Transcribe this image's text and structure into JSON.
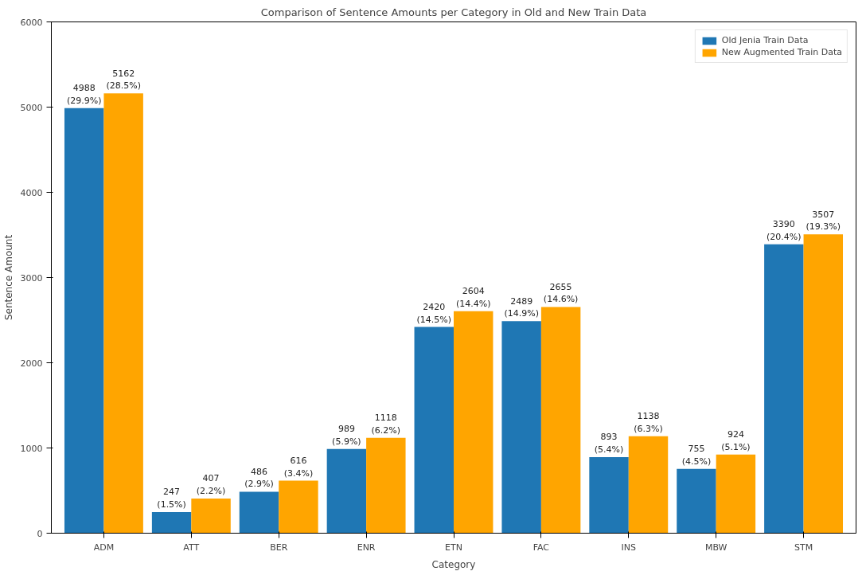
{
  "chart_data": {
    "type": "bar",
    "title": "Comparison of Sentence Amounts per Category in Old and New Train Data",
    "xlabel": "Category",
    "ylabel": "Sentence Amount",
    "categories": [
      "ADM",
      "ATT",
      "BER",
      "ENR",
      "ETN",
      "FAC",
      "INS",
      "MBW",
      "STM"
    ],
    "series": [
      {
        "name": "Old Jenia Train Data",
        "color": "#1f77b4",
        "values": [
          4988,
          247,
          486,
          989,
          2420,
          2489,
          893,
          755,
          3390
        ],
        "value_labels": [
          "4988\n(29.9%)",
          "247\n(1.5%)",
          "486\n(2.9%)",
          "989\n(5.9%)",
          "2420\n(14.5%)",
          "2489\n(14.9%)",
          "893\n(5.4%)",
          "755\n(4.5%)",
          "3390\n(20.4%)"
        ]
      },
      {
        "name": "New Augmented Train Data",
        "color": "#ffa500",
        "values": [
          5162,
          407,
          616,
          1118,
          2604,
          2655,
          1138,
          924,
          3507
        ],
        "value_labels": [
          "5162\n(28.5%)",
          "407\n(2.2%)",
          "616\n(3.4%)",
          "1118\n(6.2%)",
          "2604\n(14.4%)",
          "2655\n(14.6%)",
          "1138\n(6.3%)",
          "924\n(5.1%)",
          "3507\n(19.3%)"
        ]
      }
    ],
    "ylim": [
      0,
      6000
    ],
    "yticks": [
      0,
      1000,
      2000,
      3000,
      4000,
      5000,
      6000
    ],
    "grid": false,
    "legend": "top right"
  }
}
